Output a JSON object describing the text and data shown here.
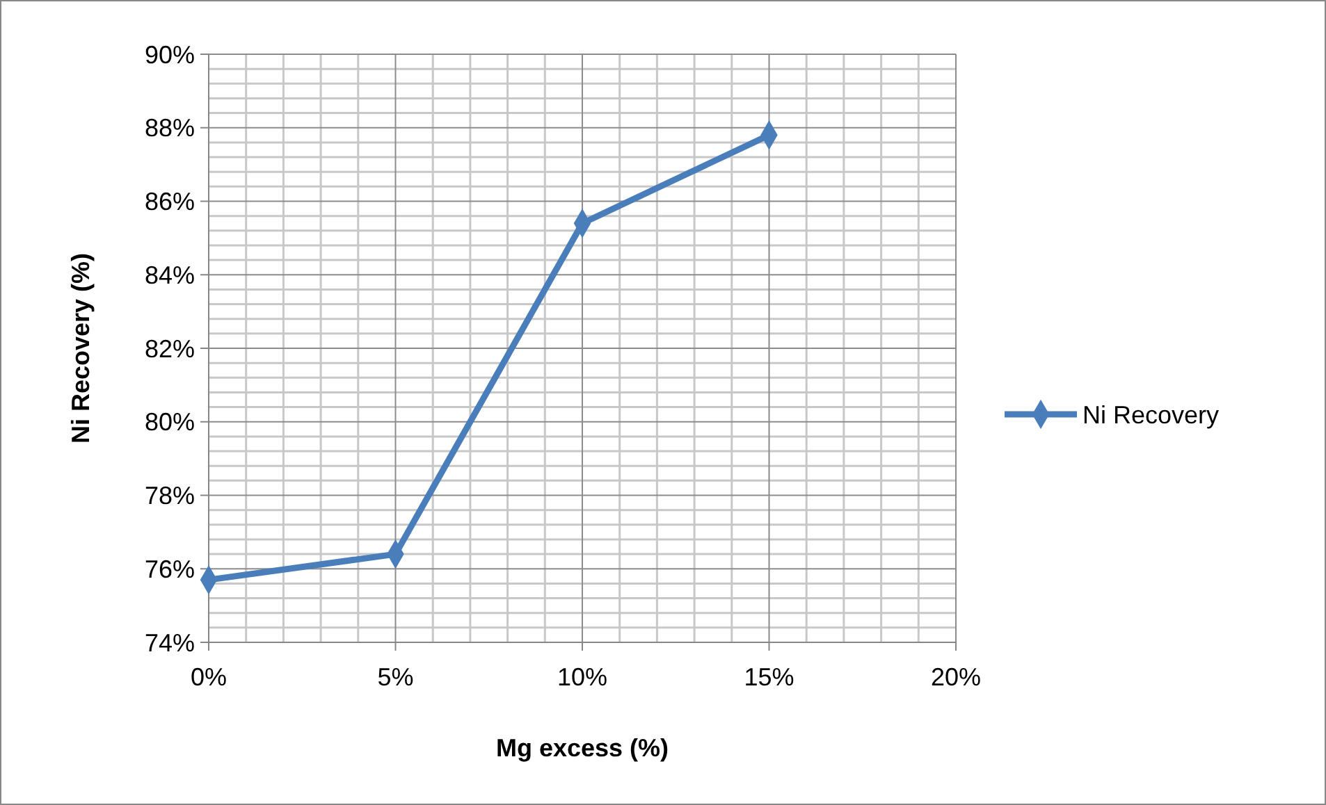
{
  "chart_data": {
    "type": "line",
    "xlabel": "Mg excess (%)",
    "ylabel": "Ni Recovery (%)",
    "x": [
      0,
      5,
      10,
      15
    ],
    "series": [
      {
        "name": "Ni Recovery",
        "color": "#4a7ebb",
        "values": [
          75.7,
          76.4,
          85.4,
          87.8
        ]
      }
    ],
    "xlim": [
      0,
      20
    ],
    "xticks": [
      {
        "value": 0,
        "label": "0%"
      },
      {
        "value": 5,
        "label": "5%"
      },
      {
        "value": 10,
        "label": "10%"
      },
      {
        "value": 15,
        "label": "15%"
      },
      {
        "value": 20,
        "label": "20%"
      }
    ],
    "ylim": [
      74,
      90
    ],
    "yticks": [
      {
        "value": 74,
        "label": "74%"
      },
      {
        "value": 76,
        "label": "76%"
      },
      {
        "value": 78,
        "label": "78%"
      },
      {
        "value": 80,
        "label": "80%"
      },
      {
        "value": 82,
        "label": "82%"
      },
      {
        "value": 84,
        "label": "84%"
      },
      {
        "value": 86,
        "label": "86%"
      },
      {
        "value": 88,
        "label": "88%"
      },
      {
        "value": 90,
        "label": "90%"
      }
    ],
    "grid": true,
    "legend": "right",
    "marker": "diamond",
    "line_style": "solid"
  }
}
